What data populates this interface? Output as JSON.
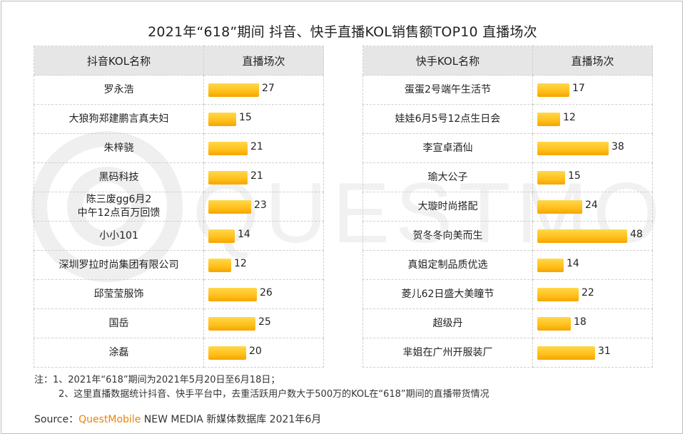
{
  "title": "2021年“618”期间 抖音、快手直播KOL销售额TOP10 直播场次",
  "chart_data": [
    {
      "type": "table",
      "name_header": "抖音KOL名称",
      "value_header": "直播场次",
      "max_value": 48,
      "rows": [
        {
          "name": "罗永浩",
          "value": 27
        },
        {
          "name": "大狼狗郑建鹏言真夫妇",
          "value": 15
        },
        {
          "name": "朱梓骁",
          "value": 21
        },
        {
          "name": "黑码科技",
          "value": 21
        },
        {
          "name": "陈三废gg6月2\n中午12点百万回馈",
          "value": 23
        },
        {
          "name": "小小101",
          "value": 14
        },
        {
          "name": "深圳罗拉时尚集团有限公司",
          "value": 12
        },
        {
          "name": "邱莹莹服饰",
          "value": 26
        },
        {
          "name": "国岳",
          "value": 25
        },
        {
          "name": "涂磊",
          "value": 20
        }
      ]
    },
    {
      "type": "table",
      "name_header": "快手KOL名称",
      "value_header": "直播场次",
      "max_value": 48,
      "rows": [
        {
          "name": "蛋蛋2号端午生活节",
          "value": 17
        },
        {
          "name": "娃娃6月5号12点生日会",
          "value": 12
        },
        {
          "name": "李宣卓酒仙",
          "value": 38
        },
        {
          "name": "瑜大公子",
          "value": 15
        },
        {
          "name": "大璇时尚搭配",
          "value": 24
        },
        {
          "name": "贺冬冬向美而生",
          "value": 48
        },
        {
          "name": "真姐定制品质优选",
          "value": 14
        },
        {
          "name": "菱儿62日盛大美瞳节",
          "value": 22
        },
        {
          "name": "超级丹",
          "value": 18
        },
        {
          "name": "芈姐在广州开服装厂",
          "value": 31
        }
      ]
    }
  ],
  "notes": {
    "line1": "注：1、2021年“618”期间为2021年5月20日至6月18日；",
    "line2": "2、这里直播数据统计抖音、快手平台中，去重活跃用户数大于500万的KOL在“618”期间的直播带货情况"
  },
  "source": {
    "prefix": "Source：",
    "brand": "QuestMobile",
    "suffix": " NEW MEDIA 新媒体数据库 2021年6月"
  },
  "watermark": {
    "text": "QUESTMOBILE"
  },
  "colors": {
    "bar": "#ffbf1a",
    "header_bg": "#e6e6e6",
    "brand": "#f08300"
  }
}
